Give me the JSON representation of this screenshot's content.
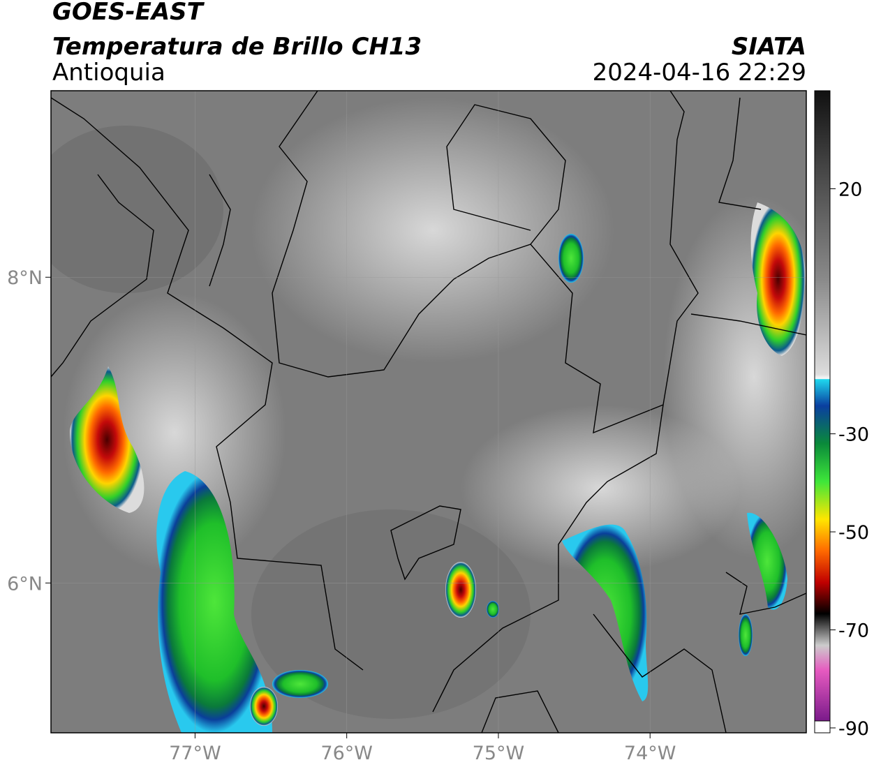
{
  "header": {
    "satellite": "GOES-EAST",
    "product": "Temperatura de Brillo CH13",
    "region": "Antioquia",
    "source": "SIATA",
    "datetime": "2024-04-16 22:29"
  },
  "map": {
    "xlim": [
      -77.95,
      -72.97
    ],
    "ylim": [
      5.02,
      9.22
    ],
    "xticks": [
      {
        "value": -77,
        "label": "77°W"
      },
      {
        "value": -76,
        "label": "76°W"
      },
      {
        "value": -75,
        "label": "75°W"
      },
      {
        "value": -74,
        "label": "74°W"
      }
    ],
    "yticks": [
      {
        "value": 8,
        "label": "8°N"
      },
      {
        "value": 6,
        "label": "6°N"
      }
    ],
    "grid": true
  },
  "colorbar": {
    "lim": [
      -91,
      40
    ],
    "ticks": [
      20,
      -30,
      -50,
      -70,
      -90
    ]
  }
}
